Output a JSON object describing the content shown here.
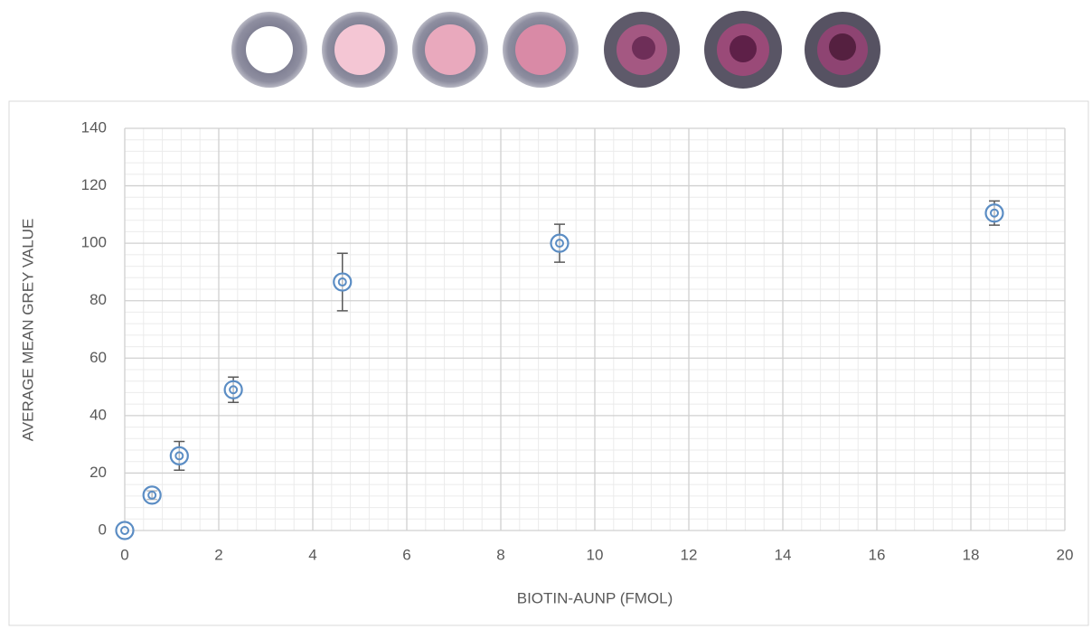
{
  "chart_data": {
    "type": "scatter",
    "x_label": "BIOTIN-AUNP (FMOL)",
    "y_label": "AVERAGE MEAN GREY VALUE",
    "x": [
      0,
      0.58,
      1.16,
      2.31,
      4.63,
      9.25,
      18.5
    ],
    "values": [
      0,
      12.3,
      26,
      49,
      86.5,
      100,
      110.5
    ],
    "errors": [
      0,
      1.5,
      5,
      4.4,
      10,
      6.6,
      4.2
    ],
    "color": "#5b8dc4",
    "error_color": "#595959",
    "xlim": [
      0,
      20
    ],
    "xticks": [
      0,
      2,
      4,
      6,
      8,
      10,
      12,
      14,
      16,
      18,
      20
    ],
    "ylim": [
      0,
      140
    ],
    "yticks": [
      0,
      20,
      40,
      60,
      80,
      100,
      120,
      140
    ],
    "grid": true,
    "minor_grid": true,
    "minor_divisions": 5
  }
}
